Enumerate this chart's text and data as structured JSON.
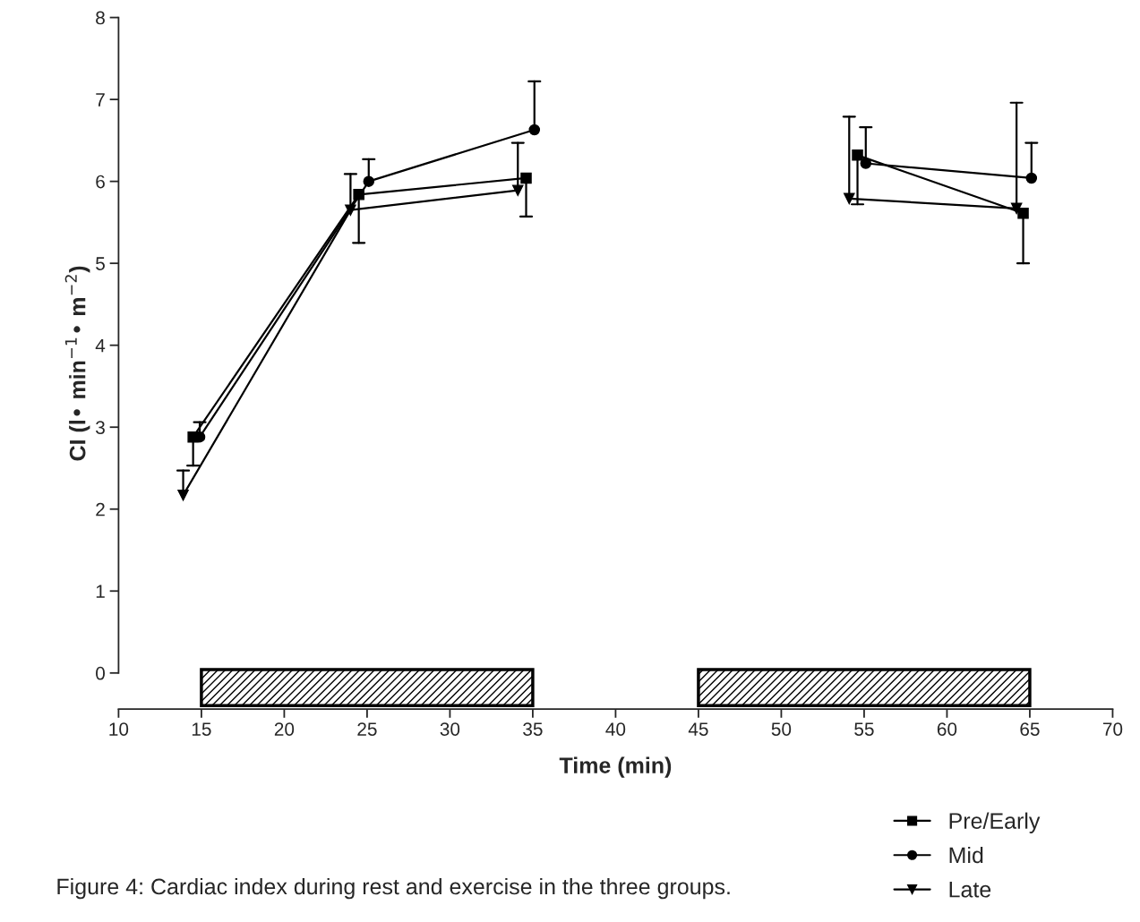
{
  "chart_data": {
    "type": "line",
    "xlabel": "Time (min)",
    "ylabel": "CI (l• min$^{−1}$• m$^{−2}$)",
    "xlim": [
      10,
      70
    ],
    "xticks": [
      10,
      15,
      20,
      25,
      30,
      35,
      40,
      45,
      50,
      55,
      60,
      65,
      70
    ],
    "ylim": [
      -0.44,
      8
    ],
    "yticks": [
      0,
      1,
      2,
      3,
      4,
      5,
      6,
      7,
      8
    ],
    "grid": false,
    "legend": "bottom right",
    "series": [
      {
        "name": "Pre/Early",
        "color": "#000000",
        "marker": "square",
        "x": [
          14.5,
          24.5,
          34.6,
          45,
          54.6,
          64.6
        ],
        "values": [
          2.88,
          5.84,
          6.04,
          null,
          6.32,
          5.61
        ],
        "errors": [
          [
            2.53,
            2.88
          ],
          [
            5.25,
            5.84
          ],
          [
            5.57,
            6.04
          ],
          null,
          [
            5.72,
            6.32
          ],
          [
            5.0,
            5.61
          ]
        ]
      },
      {
        "name": "Mid",
        "color": "#000000",
        "marker": "circle",
        "x": [
          14.9,
          25.1,
          35.1,
          45,
          55.1,
          65.1
        ],
        "values": [
          2.88,
          6.0,
          6.63,
          null,
          6.22,
          6.04
        ],
        "errors": [
          [
            2.88,
            3.06
          ],
          [
            6.0,
            6.27
          ],
          [
            6.63,
            7.22
          ],
          null,
          [
            6.22,
            6.66
          ],
          [
            6.04,
            6.47
          ]
        ]
      },
      {
        "name": "Late",
        "color": "#000000",
        "marker": "triangle",
        "x": [
          13.9,
          24.0,
          34.1,
          45,
          54.1,
          64.2
        ],
        "values": [
          2.17,
          5.65,
          5.89,
          null,
          5.79,
          5.67
        ],
        "errors": [
          [
            2.17,
            2.47
          ],
          [
            5.65,
            6.09
          ],
          [
            5.89,
            6.47
          ],
          null,
          [
            5.79,
            6.79
          ],
          [
            5.67,
            6.96
          ]
        ]
      }
    ],
    "bands": [
      {
        "axis": "x",
        "from": 15,
        "to": 35,
        "color": "#000000"
      },
      {
        "axis": "x",
        "from": 45,
        "to": 65,
        "color": "#000000"
      }
    ],
    "annotations": [
      "Figure 4: Cardiac index during rest and exercise in the three groups."
    ]
  }
}
